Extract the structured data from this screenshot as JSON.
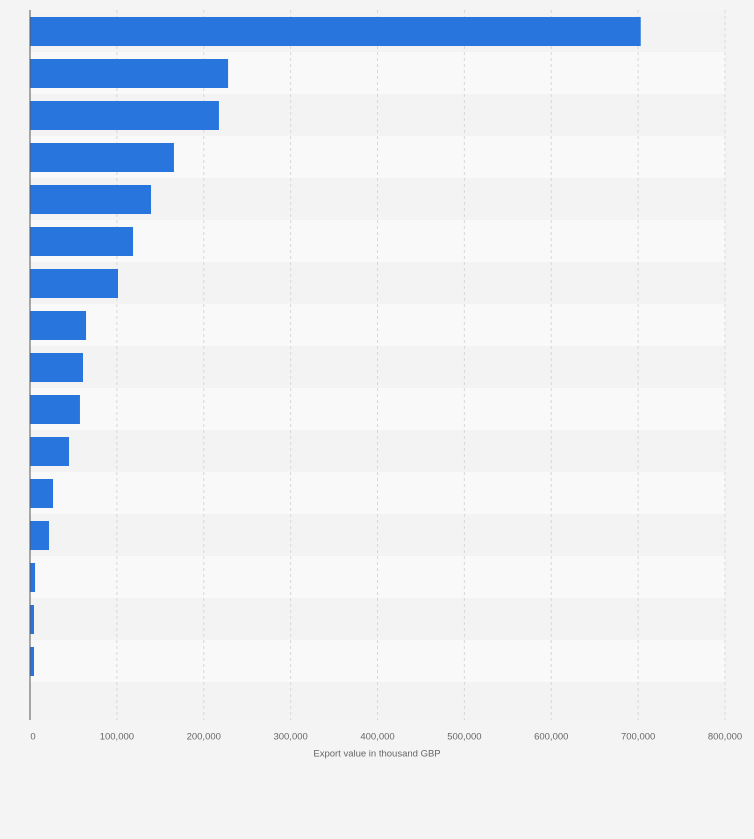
{
  "chart_data": {
    "type": "hbar",
    "xlabel": "Export value in thousand GBP",
    "categories": [
      null,
      null,
      null,
      null,
      null,
      null,
      null,
      null,
      null,
      null,
      null,
      null,
      null,
      null,
      null,
      null
    ],
    "values": [
      703000,
      228000,
      217500,
      165700,
      139300,
      118600,
      101300,
      64500,
      61000,
      57500,
      44900,
      26500,
      21900,
      5800,
      4600,
      4600
    ],
    "color": "#2876dd",
    "xlim": [
      0,
      800000
    ],
    "xticks": [
      0,
      {
        "value": 100000,
        "label": "100,000"
      },
      {
        "value": 200000,
        "label": "200,000"
      },
      {
        "value": 300000,
        "label": "300,000"
      },
      {
        "value": 400000,
        "label": "400,000"
      },
      {
        "value": 500000,
        "label": "500,000"
      },
      {
        "value": 600000,
        "label": "600,000"
      },
      {
        "value": 700000,
        "label": "700,000"
      },
      {
        "value": 800000,
        "label": "800,000"
      }
    ],
    "grid": true
  }
}
